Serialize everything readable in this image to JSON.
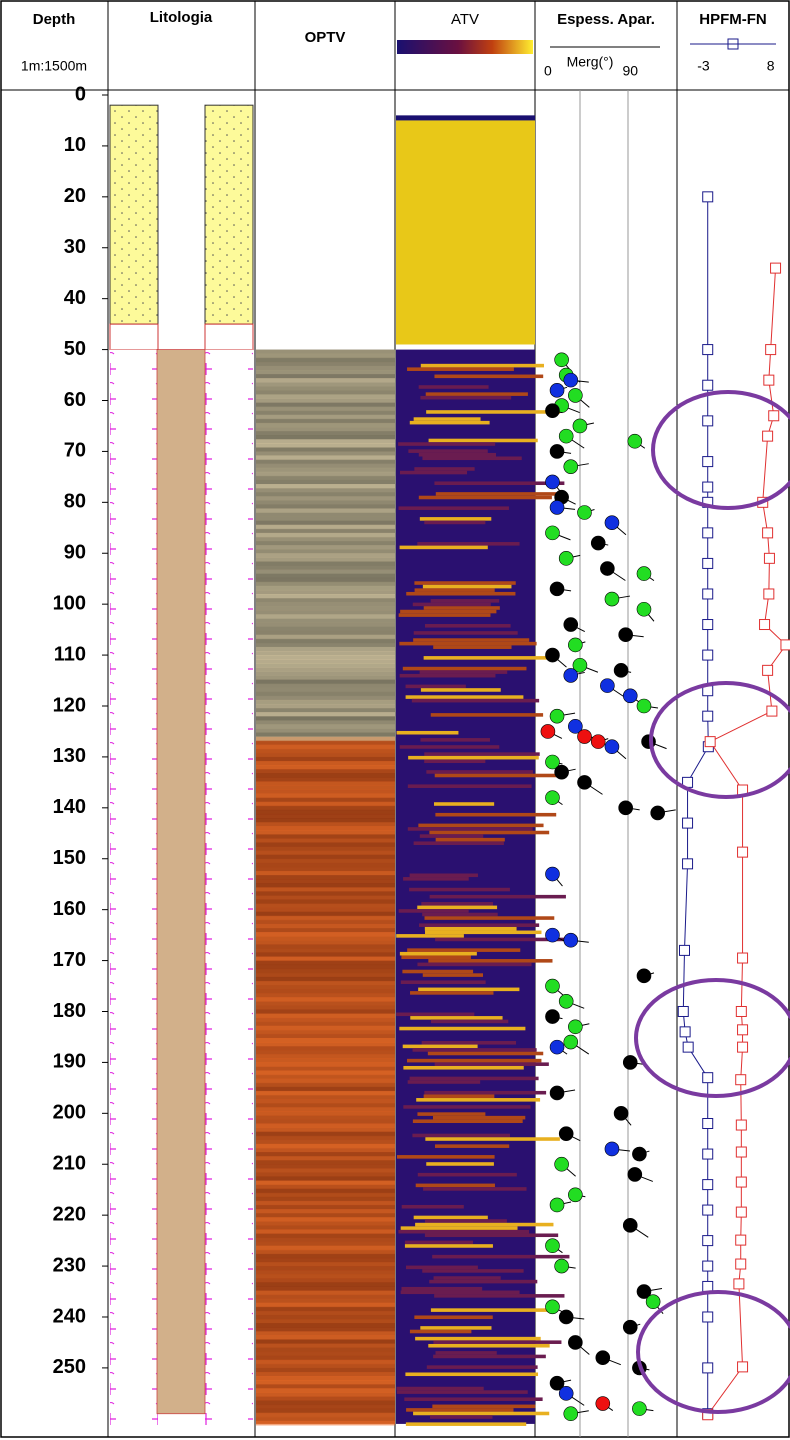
{
  "header": {
    "depth": "Depth",
    "scale": "1m:1500m",
    "lithology": "Litologia",
    "optv": "OPTV",
    "atv": "ATV",
    "dips": "Espess. Apar.",
    "dip_axis_label": "Merg(°)",
    "hpfm": "HPFM-FN"
  },
  "depth_axis": {
    "lim": [
      0,
      262
    ],
    "ticks": [
      0,
      10,
      20,
      30,
      40,
      50,
      60,
      70,
      80,
      90,
      100,
      110,
      120,
      130,
      140,
      150,
      160,
      170,
      180,
      190,
      200,
      210,
      220,
      230,
      240,
      250
    ]
  },
  "dips": {
    "xlim": [
      -13,
      140
    ],
    "ticks": [
      0,
      90
    ],
    "depth": [
      52,
      55,
      56,
      58,
      59,
      61,
      62,
      65,
      67,
      68,
      70,
      73,
      76,
      79,
      81,
      82,
      84,
      86,
      88,
      91,
      93,
      94,
      97,
      99,
      101,
      104,
      106,
      108,
      110,
      112,
      113,
      114,
      116,
      118,
      120,
      122,
      124,
      125,
      126,
      127,
      128,
      127,
      131,
      133,
      135,
      138,
      140,
      141,
      153,
      165,
      166,
      173,
      175,
      178,
      181,
      183,
      186,
      187,
      190,
      196,
      200,
      204,
      207,
      208,
      210,
      212,
      216,
      218,
      222,
      226,
      230,
      235,
      237,
      238,
      240,
      242,
      245,
      248,
      250,
      253,
      255,
      257,
      258,
      259
    ],
    "dip": [
      15,
      20,
      25,
      10,
      30,
      15,
      5,
      35,
      20,
      95,
      10,
      25,
      5,
      15,
      10,
      40,
      70,
      5,
      55,
      20,
      65,
      105,
      10,
      70,
      105,
      25,
      85,
      30,
      5,
      35,
      80,
      25,
      65,
      90,
      105,
      10,
      30,
      0,
      40,
      55,
      70,
      110,
      5,
      15,
      40,
      5,
      85,
      120,
      5,
      5,
      25,
      105,
      5,
      20,
      5,
      30,
      25,
      10,
      90,
      10,
      80,
      20,
      70,
      100,
      15,
      95,
      30,
      10,
      90,
      5,
      15,
      105,
      115,
      5,
      20,
      90,
      30,
      60,
      100,
      10,
      20,
      60,
      100,
      25
    ],
    "colors": [
      "#22dd22",
      "#22dd22",
      "#1030e0",
      "#1030e0",
      "#22dd22",
      "#22dd22",
      "#000000",
      "#22dd22",
      "#22dd22",
      "#22dd22",
      "#000000",
      "#22dd22",
      "#1030e0",
      "#000000",
      "#1030e0",
      "#22dd22",
      "#1030e0",
      "#22dd22",
      "#000000",
      "#22dd22",
      "#000000",
      "#22dd22",
      "#000000",
      "#22dd22",
      "#22dd22",
      "#000000",
      "#000000",
      "#22dd22",
      "#000000",
      "#22dd22",
      "#000000",
      "#1030e0",
      "#1030e0",
      "#1030e0",
      "#22dd22",
      "#22dd22",
      "#1030e0",
      "#ee1010",
      "#ee1010",
      "#ee1010",
      "#1030e0",
      "#000000",
      "#22dd22",
      "#000000",
      "#000000",
      "#22dd22",
      "#000000",
      "#000000",
      "#1030e0",
      "#1030e0",
      "#1030e0",
      "#000000",
      "#22dd22",
      "#22dd22",
      "#000000",
      "#22dd22",
      "#22dd22",
      "#1030e0",
      "#000000",
      "#000000",
      "#000000",
      "#000000",
      "#1030e0",
      "#000000",
      "#22dd22",
      "#000000",
      "#22dd22",
      "#22dd22",
      "#000000",
      "#22dd22",
      "#22dd22",
      "#000000",
      "#22dd22",
      "#22dd22",
      "#000000",
      "#000000",
      "#000000",
      "#000000",
      "#000000",
      "#000000",
      "#1030e0",
      "#ee1010",
      "#22dd22",
      "#22dd22"
    ]
  },
  "hpfm": {
    "xlim": [
      -7,
      11
    ],
    "ticks": [
      -3,
      8
    ],
    "marker_color": "#1a1a8a",
    "series": [
      {
        "color": "#1a1a8a",
        "depth": [
          20,
          50,
          57,
          64,
          72,
          77,
          80,
          86,
          92,
          98,
          104,
          110,
          117,
          122,
          128,
          135,
          143,
          151,
          168,
          180,
          184,
          187,
          193,
          202,
          208,
          214,
          219,
          225,
          230,
          234,
          240,
          250,
          259
        ],
        "values": [
          -2.3,
          -2.3,
          -2.3,
          -2.3,
          -2.3,
          -2.3,
          -2.3,
          -2.3,
          -2.3,
          -2.3,
          -2.3,
          -2.3,
          -2.3,
          -2.3,
          -2.2,
          -5.6,
          -5.6,
          -5.6,
          -6.1,
          -6.3,
          -6.0,
          -5.5,
          -2.3,
          -2.3,
          -2.3,
          -2.3,
          -2.3,
          -2.3,
          -2.3,
          -2.3,
          -2.3,
          -2.3,
          -2.3
        ]
      },
      {
        "color": "#e03030",
        "depth": [
          34,
          50,
          56,
          63,
          67,
          80,
          86,
          91,
          98,
          104,
          108,
          113,
          121,
          127,
          136.5,
          148.7,
          169.5,
          180,
          183.6,
          187,
          193.4,
          202.3,
          207.6,
          213.5,
          219.4,
          224.9,
          229.6,
          233.5,
          249.8,
          259.2
        ],
        "values": [
          8.8,
          8.0,
          7.7,
          8.5,
          7.5,
          6.7,
          7.5,
          7.8,
          7.7,
          7.0,
          10.5,
          7.5,
          8.2,
          -1.9,
          3.4,
          3.4,
          3.4,
          3.2,
          3.4,
          3.4,
          3.1,
          3.2,
          3.2,
          3.2,
          3.2,
          3.1,
          3.1,
          2.8,
          3.4,
          -2.3
        ]
      }
    ]
  }
}
